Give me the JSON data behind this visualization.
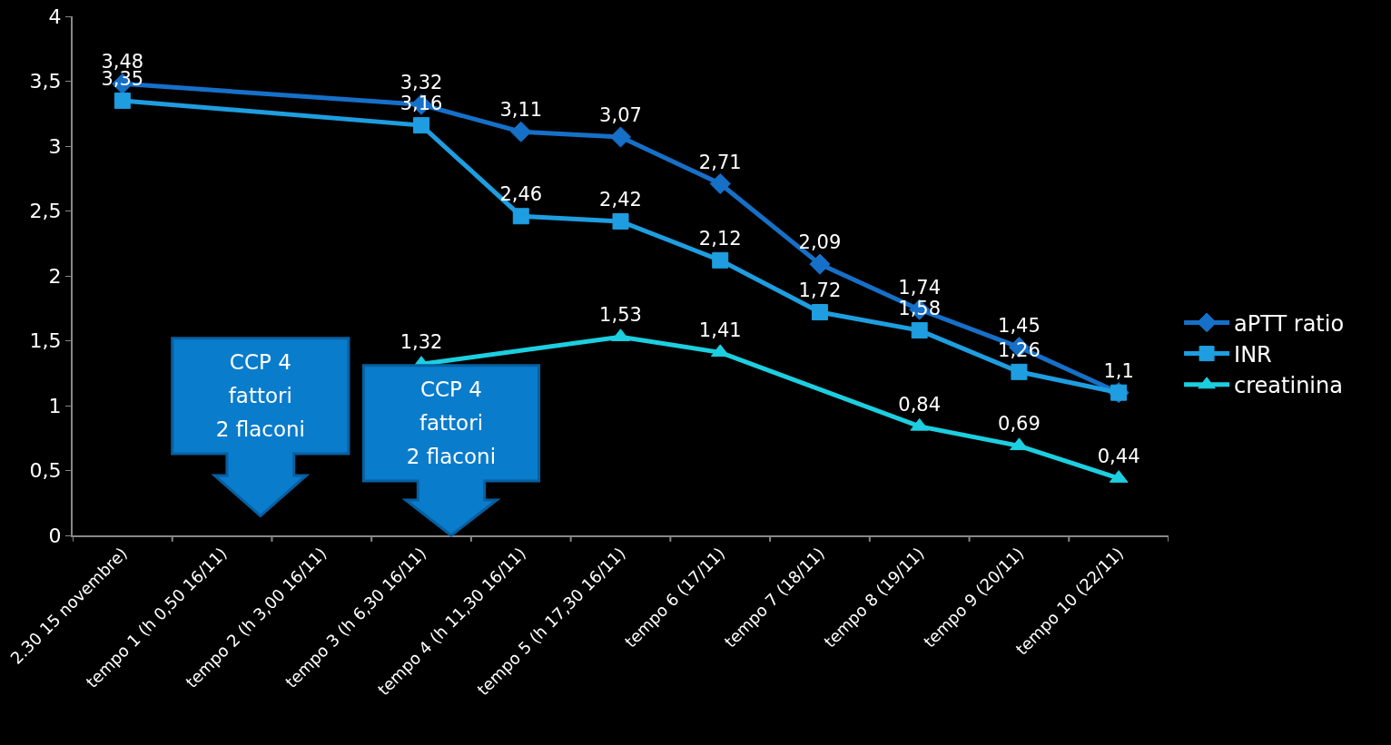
{
  "chart_data": {
    "type": "line",
    "categories": [
      "2.30 15 novembre)",
      "tempo 1 (h 0,50 16/11)",
      "tempo 2 (h 3,00 16/11)",
      "tempo 3 (h 6,30 16/11)",
      "tempo 4 (h 11,30 16/11)",
      "tempo 5 (h 17,30 16/11)",
      "tempo 6 (17/11)",
      "tempo 7 (18/11)",
      "tempo 8 (19/11)",
      "tempo 9 (20/11)",
      "tempo 10 (22/11)"
    ],
    "series": [
      {
        "name": "aPTT ratio",
        "color": "#1670c8",
        "marker": "diamond",
        "values": [
          3.48,
          null,
          null,
          3.32,
          3.11,
          3.07,
          2.71,
          2.09,
          1.74,
          1.45,
          1.1
        ],
        "value_labels": [
          "3,48",
          null,
          null,
          "3,32",
          "3,11",
          "3,07",
          "2,71",
          "2,09",
          "1,74",
          "1,45",
          "1,1"
        ]
      },
      {
        "name": "INR",
        "color": "#1e9ee0",
        "marker": "square",
        "values": [
          3.35,
          null,
          null,
          3.16,
          2.46,
          2.42,
          2.12,
          1.72,
          1.58,
          1.26,
          1.1
        ],
        "value_labels": [
          "3,35",
          null,
          null,
          "3,16",
          "2,46",
          "2,42",
          "2,12",
          "1,72",
          "1,58",
          "1,26",
          null
        ]
      },
      {
        "name": "creatinina",
        "color": "#1ccfe0",
        "marker": "triangle",
        "values": [
          null,
          null,
          null,
          1.32,
          null,
          1.53,
          1.41,
          null,
          0.84,
          0.69,
          0.44
        ],
        "value_labels": [
          null,
          null,
          null,
          "1,32",
          null,
          "1,53",
          "1,41",
          null,
          "0,84",
          "0,69",
          "0,44"
        ]
      }
    ],
    "ylim": [
      0,
      4
    ],
    "yticks": [
      0,
      {
        "value": 0.5,
        "label": "0,5"
      },
      1,
      {
        "value": 1.5,
        "label": "1,5"
      },
      2,
      {
        "value": 2.5,
        "label": "2,5"
      },
      3,
      {
        "value": 3.5,
        "label": "3,5"
      },
      4
    ],
    "grid": false,
    "legend": "right",
    "line_style": "solid",
    "annotations": [
      "CCP 4\nfattori\n2 flaconi",
      "CCP 4\nfattori\n2 flaconi"
    ]
  }
}
